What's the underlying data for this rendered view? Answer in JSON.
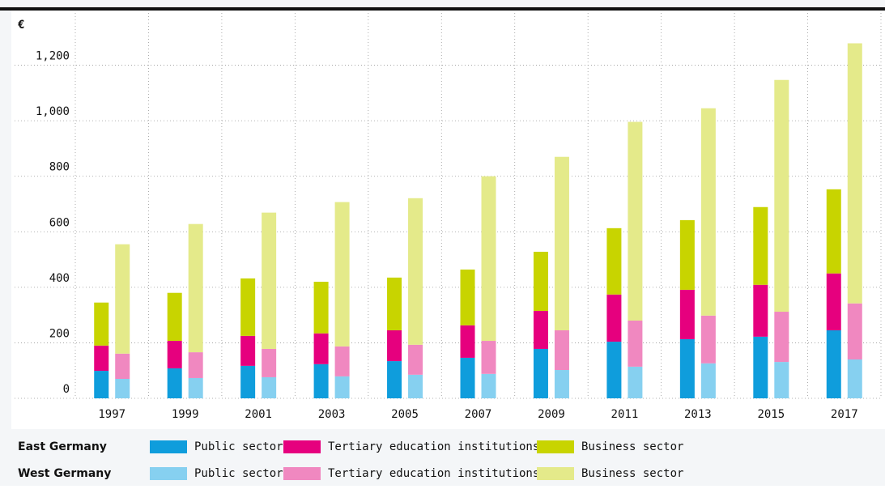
{
  "chart_data": {
    "type": "bar",
    "y_unit": "€",
    "categories": [
      "1997",
      "1999",
      "2001",
      "2003",
      "2005",
      "2007",
      "2009",
      "2011",
      "2013",
      "2015",
      "2017"
    ],
    "ylim": [
      0,
      1400
    ],
    "yticks": [
      0,
      200,
      400,
      600,
      800,
      {
        "value": 1000,
        "label": "1,000"
      },
      {
        "value": 1200,
        "label": "1,200"
      }
    ],
    "grid": true,
    "stacks": [
      {
        "name": "East Germany",
        "series": [
          {
            "name": "Public sector",
            "color": "#0f9ddc",
            "values": [
              99,
              108,
              117,
              123,
              134,
              146,
              178,
              204,
              213,
              222,
              245
            ]
          },
          {
            "name": "Tertiary education institutions",
            "color": "#e6007e",
            "values": [
              91,
              99,
              108,
              111,
              111,
              117,
              137,
              170,
              178,
              187,
              205
            ]
          },
          {
            "name": "Business sector",
            "color": "#c8d400",
            "values": [
              155,
              173,
              207,
              186,
              190,
              201,
              213,
              239,
              251,
              280,
              303
            ]
          }
        ]
      },
      {
        "name": "West Germany",
        "series": [
          {
            "name": "Public sector",
            "color": "#86d0f0",
            "values": [
              70,
              73,
              76,
              79,
              85,
              88,
              102,
              114,
              126,
              131,
              140
            ]
          },
          {
            "name": "Tertiary education institutions",
            "color": "#f088c0",
            "values": [
              91,
              93,
              102,
              108,
              108,
              119,
              143,
              166,
              172,
              181,
              202
            ]
          },
          {
            "name": "Business sector",
            "color": "#e4ea8a",
            "values": [
              394,
              462,
              491,
              520,
              528,
              593,
              625,
              716,
              747,
              835,
              937
            ]
          }
        ]
      }
    ]
  }
}
